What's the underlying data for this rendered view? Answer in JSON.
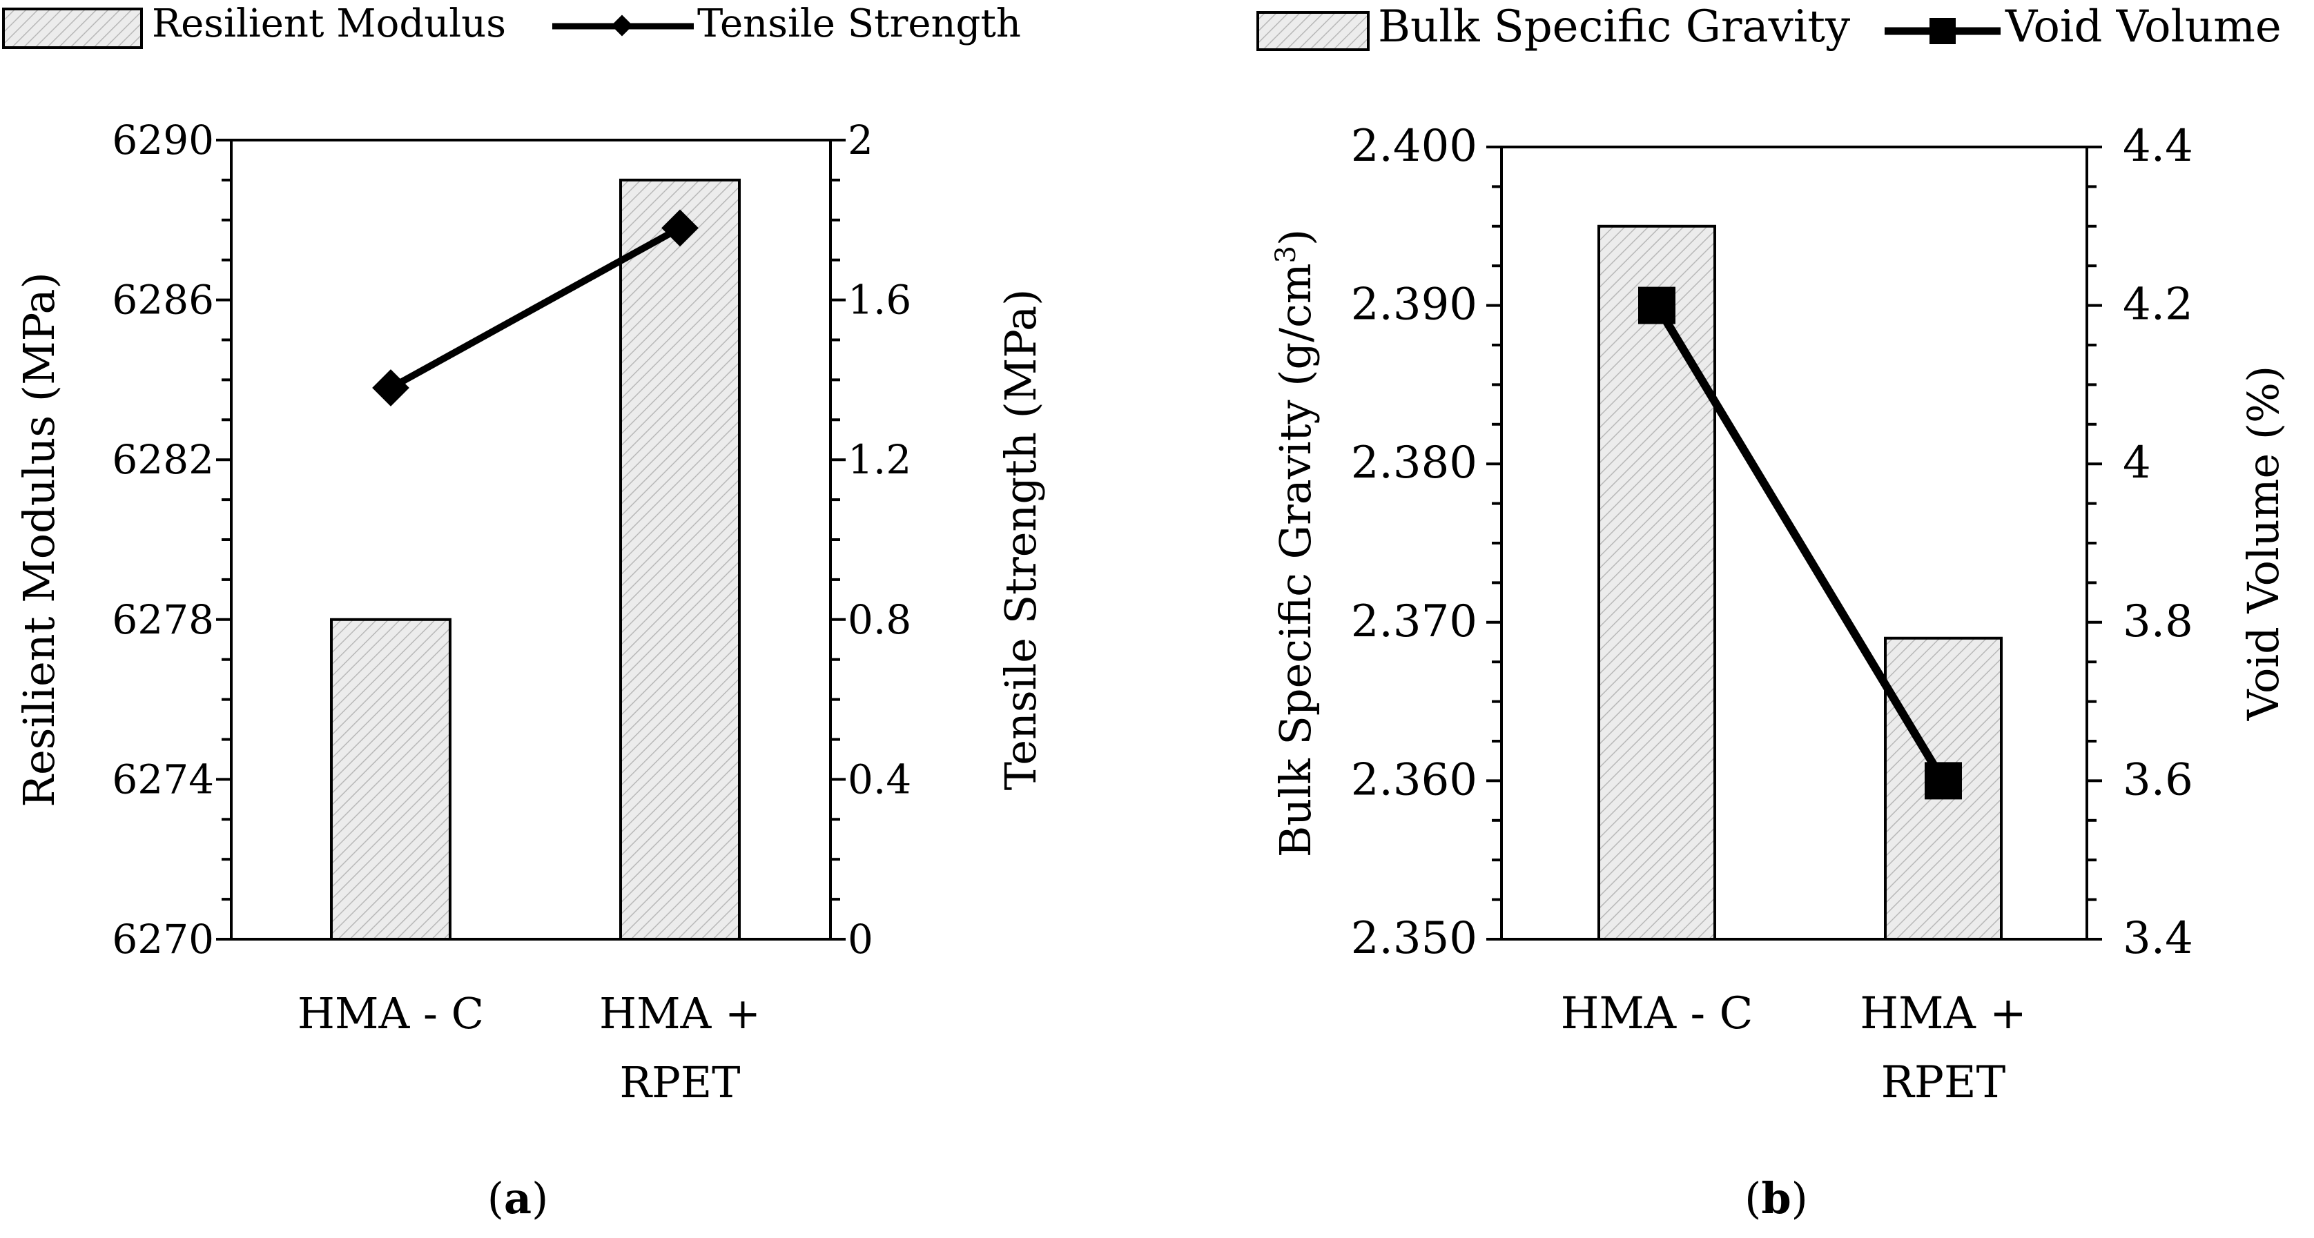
{
  "colors": {
    "ink": "#000000",
    "bar_fill": "#ececec",
    "hatch": "#b8b8b8",
    "background": "#ffffff"
  },
  "chart_data": [
    {
      "panel_label": "a",
      "type": "bar+line",
      "categories": [
        [
          "HMA - C"
        ],
        [
          "HMA +",
          "RPET"
        ]
      ],
      "bar_series": {
        "name": "Resilient Modulus",
        "axis": "left",
        "values": [
          6278,
          6289
        ]
      },
      "line_series": {
        "name": "Tensile Strength",
        "axis": "right",
        "marker": "diamond",
        "values": [
          1.38,
          1.78
        ]
      },
      "left_axis": {
        "label": "Resilient Modulus (MPa)",
        "range": [
          6270,
          6290
        ],
        "ticks": [
          "6270",
          "6274",
          "6278",
          "6282",
          "6286",
          "6290"
        ]
      },
      "right_axis": {
        "label": "Tensile Strength (MPa)",
        "range": [
          0,
          2
        ],
        "ticks": [
          "0",
          "0.4",
          "0.8",
          "1.2",
          "1.6",
          "2"
        ]
      },
      "legend_position": "top"
    },
    {
      "panel_label": "b",
      "type": "bar+line",
      "categories": [
        [
          "HMA - C"
        ],
        [
          "HMA +",
          "RPET"
        ]
      ],
      "bar_series": {
        "name": "Bulk Specific Gravity",
        "axis": "left",
        "values": [
          2.395,
          2.369
        ]
      },
      "line_series": {
        "name": "Void Volume",
        "axis": "right",
        "marker": "square",
        "values": [
          4.2,
          3.6
        ]
      },
      "left_axis": {
        "label": "Bulk Specific Gravity (g/cm",
        "label_superscript": "3",
        "label_suffix": ")",
        "range": [
          2.35,
          2.4
        ],
        "ticks": [
          "2.350",
          "2.360",
          "2.370",
          "2.380",
          "2.390",
          "2.400"
        ]
      },
      "right_axis": {
        "label": "Void Volume (%)",
        "range": [
          3.4,
          4.4
        ],
        "ticks": [
          "3.4",
          "3.6",
          "3.8",
          "4",
          "4.2",
          "4.4"
        ]
      },
      "legend_position": "top"
    }
  ]
}
